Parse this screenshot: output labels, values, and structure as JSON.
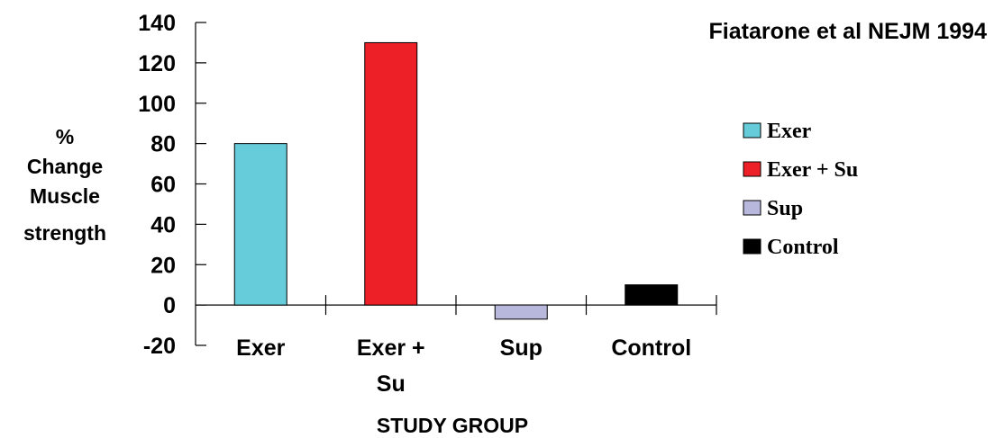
{
  "chart_data": {
    "type": "bar",
    "title": "Fiatarone et al NEJM 1994",
    "ylabel": [
      "%",
      "Change",
      "Muscle",
      "strength"
    ],
    "xlabel": "STUDY GROUP",
    "ylim": [
      -20,
      140
    ],
    "yticks": [
      -20,
      0,
      20,
      40,
      60,
      80,
      100,
      120,
      140
    ],
    "ytick_labels": [
      "-20",
      "0",
      "20",
      "40",
      "60",
      "80",
      "100",
      "120",
      "140"
    ],
    "categories": [
      [
        "Exer"
      ],
      [
        "Exer +",
        "Su"
      ],
      [
        "Sup"
      ],
      [
        "Control"
      ]
    ],
    "values": [
      80,
      130,
      -7,
      10
    ],
    "colors": [
      "#66CCD9",
      "#EE2027",
      "#B8B8DC",
      "#000000"
    ],
    "legend": {
      "position": "right",
      "entries": [
        "Exer",
        "Exer + Su",
        "Sup",
        "Control"
      ]
    },
    "grid": false
  }
}
